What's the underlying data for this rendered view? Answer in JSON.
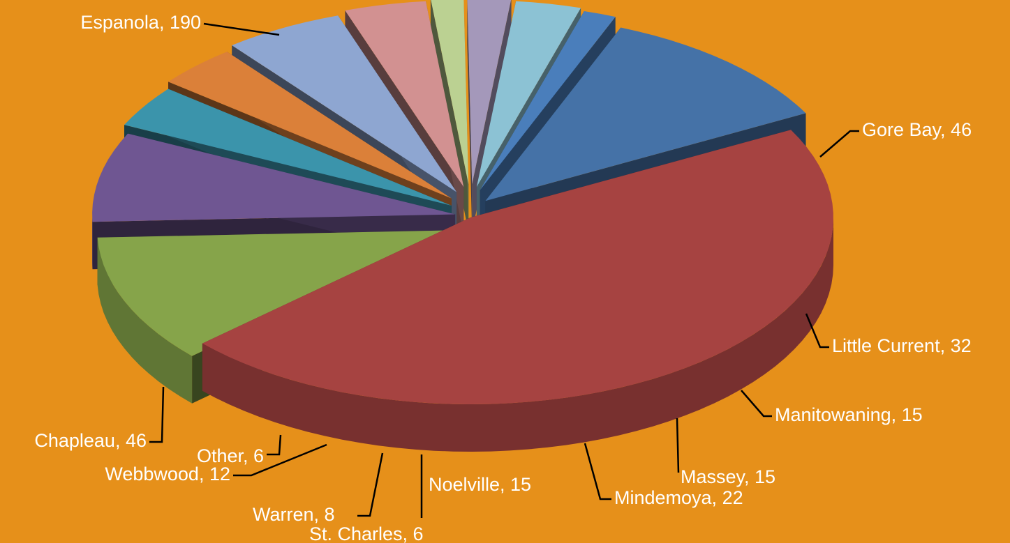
{
  "chart_data": {
    "type": "pie",
    "style": "3d-exploded",
    "background_color": "#E6901A",
    "label_color": "#FFFFFF",
    "leader_color": "#000000",
    "slices": [
      {
        "label": "Espanola",
        "value": 190,
        "display": "Espanola, 190",
        "color": "#A64341"
      },
      {
        "label": "Gore Bay",
        "value": 46,
        "display": "Gore Bay, 46",
        "color": "#86A44A"
      },
      {
        "label": "Little Current",
        "value": 32,
        "display": "Little Current, 32",
        "color": "#6F5692"
      },
      {
        "label": "Manitowaning",
        "value": 15,
        "display": "Manitowaning, 15",
        "color": "#3B94AB"
      },
      {
        "label": "Massey",
        "value": 15,
        "display": "Massey, 15",
        "color": "#DB8039"
      },
      {
        "label": "Mindemoya",
        "value": 22,
        "display": "Mindemoya, 22",
        "color": "#8EA6D1"
      },
      {
        "label": "Noelville",
        "value": 15,
        "display": "Noelville, 15",
        "color": "#D29191"
      },
      {
        "label": "St. Charles",
        "value": 6,
        "display": "St. Charles, 6",
        "color": "#BBD192"
      },
      {
        "label": "Warren",
        "value": 8,
        "display": "Warren, 8",
        "color": "#A498BA"
      },
      {
        "label": "Webbwood",
        "value": 12,
        "display": "Webbwood, 12",
        "color": "#8CC2D4"
      },
      {
        "label": "Other",
        "value": 6,
        "display": "Other, 6",
        "color": "#4A7EBB"
      },
      {
        "label": "Chapleau",
        "value": 46,
        "display": "Chapleau, 46",
        "color": "#4572A7"
      }
    ]
  }
}
